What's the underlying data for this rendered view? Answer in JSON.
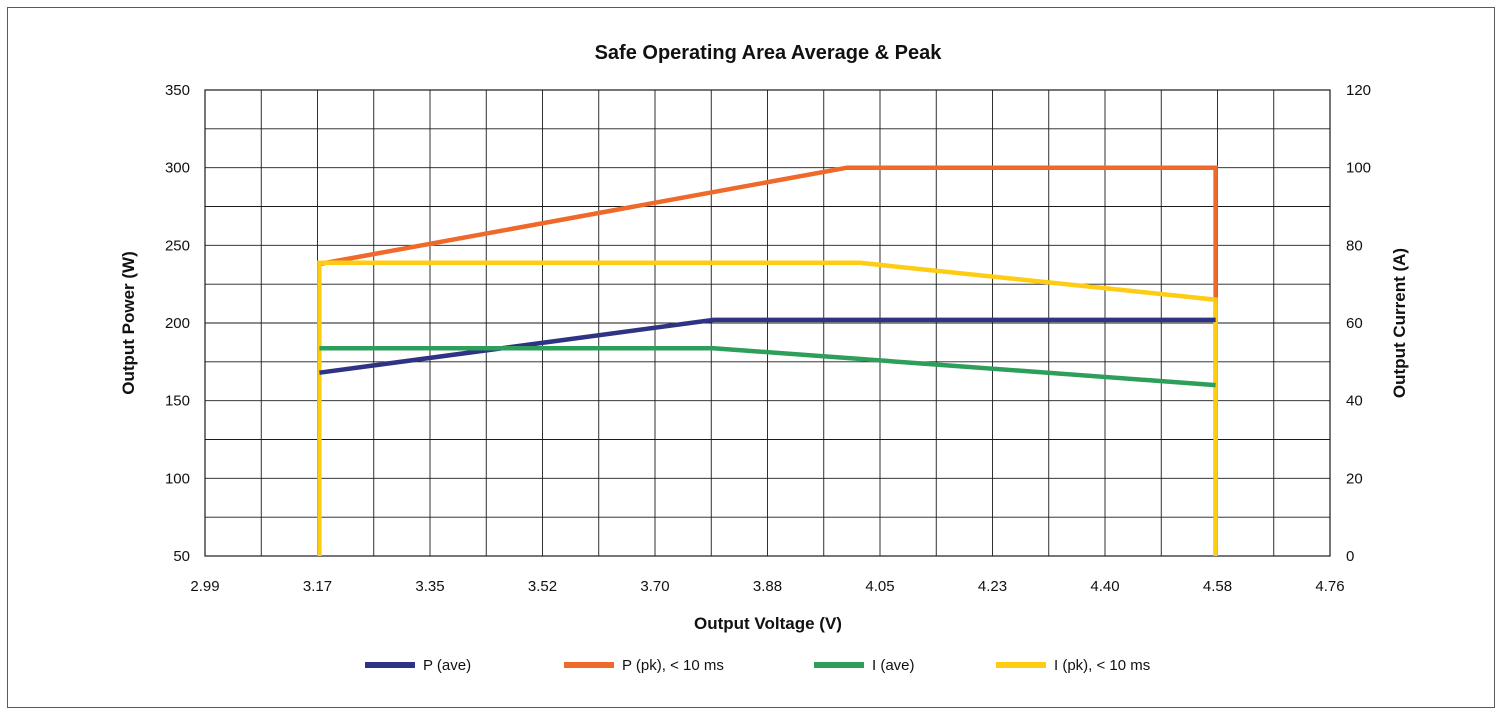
{
  "chart_data": {
    "type": "line",
    "title": "Safe Operating Area Average & Peak",
    "xlabel": "Output Voltage (V)",
    "ylabel": "Output Power (W)",
    "y2label": "Output Current (A)",
    "xlim": [
      2.99,
      4.76
    ],
    "ylim": [
      50,
      350
    ],
    "y2lim": [
      0,
      120
    ],
    "x_tick_labels": [
      "2.99",
      "3.17",
      "3.35",
      "3.52",
      "3.70",
      "3.88",
      "4.05",
      "4.23",
      "4.40",
      "4.58",
      "4.76"
    ],
    "y_tick_labels": [
      "50",
      "100",
      "150",
      "200",
      "250",
      "300",
      "350"
    ],
    "y2_tick_labels": [
      "0",
      "20",
      "40",
      "60",
      "80",
      "100",
      "120"
    ],
    "grid": true,
    "legend_position": "bottom",
    "series": [
      {
        "name": "P (ave)",
        "axis": "left",
        "color": "#2e3483",
        "points": [
          [
            3.17,
            168
          ],
          [
            3.79,
            202
          ],
          [
            4.58,
            202
          ]
        ]
      },
      {
        "name": "P (pk), < 10 ms",
        "axis": "left",
        "color": "#ef6a2a",
        "points": [
          [
            3.17,
            238
          ],
          [
            4.0,
            300
          ],
          [
            4.58,
            300
          ],
          [
            4.58,
            50
          ]
        ]
      },
      {
        "name": "I (ave)",
        "axis": "right",
        "color": "#2e9f5b",
        "points": [
          [
            3.17,
            53.5
          ],
          [
            3.79,
            53.5
          ],
          [
            4.58,
            44
          ]
        ]
      },
      {
        "name": "I (pk), < 10 ms",
        "axis": "right",
        "color": "#ffcc14",
        "points": [
          [
            3.17,
            0
          ],
          [
            3.17,
            75.5
          ],
          [
            4.02,
            75.5
          ],
          [
            4.58,
            66
          ],
          [
            4.58,
            0
          ]
        ]
      }
    ]
  }
}
